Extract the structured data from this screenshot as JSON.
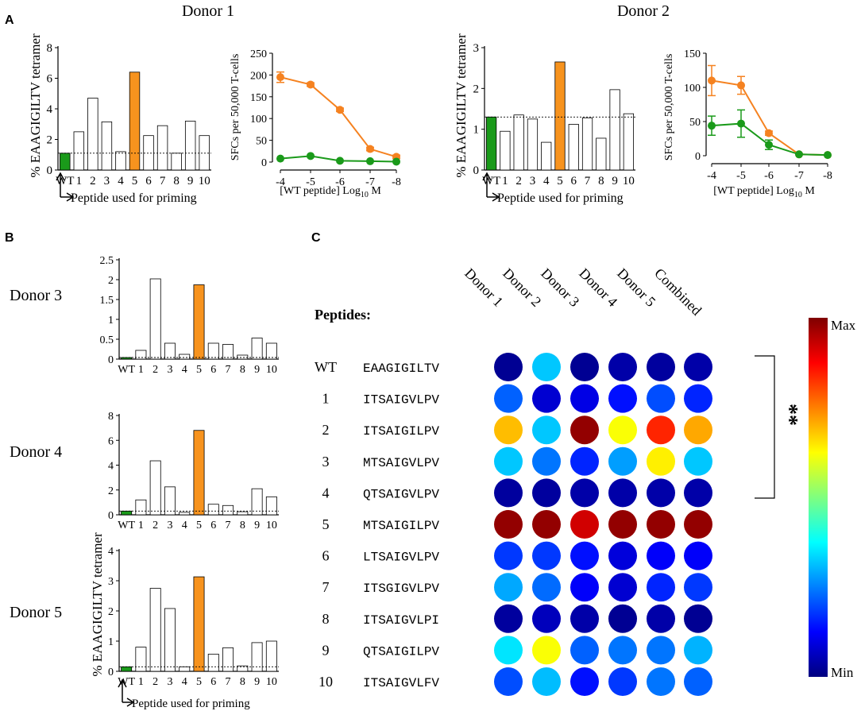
{
  "figure": {
    "panel_labels": {
      "A": "A",
      "B": "B",
      "C": "C"
    },
    "x_caption": "Peptide used for priming",
    "y_caption_bar": "% EAAGIGILTV tetramer",
    "y_caption_line": "SFCs per 50,000 T-cells",
    "x_caption_line": "[WT peptide] Log",
    "x_caption_line_sub": "10",
    "x_caption_line_unit": " M",
    "peptides_title": "Peptides:",
    "heat_max_label": "Max",
    "heat_min_label": "Min",
    "significance": "**"
  },
  "colors": {
    "wt_green": "#1a9a1a",
    "pep5_orange": "#f7931e",
    "line_orange": "#f58220",
    "line_green": "#1a9a1a"
  },
  "chart_data": [
    {
      "type": "bar",
      "panel": "A",
      "title": "Donor 1",
      "categories": [
        "WT",
        "1",
        "2",
        "3",
        "4",
        "5",
        "6",
        "7",
        "8",
        "9",
        "10"
      ],
      "values": [
        1.1,
        2.5,
        4.7,
        3.15,
        1.2,
        6.4,
        2.25,
        2.9,
        1.1,
        3.2,
        2.25
      ],
      "ylim": [
        0,
        8
      ],
      "yticks": [
        "0",
        "2",
        "4",
        "6",
        "8"
      ],
      "threshold": 1.1,
      "xlabel": "Peptide used for priming",
      "ylabel": "% EAAGIGILTV tetramer"
    },
    {
      "type": "line",
      "panel": "A",
      "x": [
        -4,
        -5,
        -6,
        -7,
        -8
      ],
      "xticks": [
        "-4",
        "-5",
        "-6",
        "-7",
        "-8"
      ],
      "ylim": [
        0,
        250
      ],
      "yticks": [
        "0",
        "50",
        "100",
        "150",
        "200",
        "250"
      ],
      "series": [
        {
          "name": "orange",
          "values": [
            195,
            178,
            120,
            30,
            12
          ],
          "errors": [
            12,
            4,
            4,
            4,
            4
          ]
        },
        {
          "name": "green",
          "values": [
            8,
            14,
            3,
            2,
            1
          ],
          "errors": [
            2,
            2,
            1,
            1,
            1
          ]
        }
      ],
      "xlabel": "[WT peptide] Log10 M",
      "ylabel": "SFCs per 50,000 T-cells"
    },
    {
      "type": "bar",
      "panel": "A",
      "title": "Donor 2",
      "categories": [
        "WT",
        "1",
        "2",
        "3",
        "4",
        "5",
        "6",
        "7",
        "8",
        "9",
        "10"
      ],
      "values": [
        1.3,
        0.95,
        1.35,
        1.25,
        0.68,
        2.65,
        1.12,
        1.28,
        0.78,
        1.97,
        1.38
      ],
      "ylim": [
        0,
        3
      ],
      "yticks": [
        "0",
        "1",
        "2",
        "3"
      ],
      "threshold": 1.3,
      "xlabel": "Peptide used for priming",
      "ylabel": "% EAAGIGILTV tetramer"
    },
    {
      "type": "line",
      "panel": "A",
      "x": [
        -4,
        -5,
        -6,
        -7,
        -8
      ],
      "xticks": [
        "-4",
        "-5",
        "-6",
        "-7",
        "-8"
      ],
      "ylim": [
        0,
        150
      ],
      "yticks": [
        "0",
        "50",
        "100",
        "150"
      ],
      "series": [
        {
          "name": "orange",
          "values": [
            110,
            103,
            33,
            2,
            1
          ],
          "errors": [
            22,
            13,
            3,
            1,
            1
          ]
        },
        {
          "name": "green",
          "values": [
            44,
            47,
            16,
            2,
            1
          ],
          "errors": [
            14,
            20,
            7,
            1,
            1
          ]
        }
      ],
      "xlabel": "[WT peptide] Log10 M",
      "ylabel": "SFCs per 50,000 T-cells"
    },
    {
      "type": "bar",
      "panel": "B",
      "title": "Donor 3",
      "categories": [
        "WT",
        "1",
        "2",
        "3",
        "4",
        "5",
        "6",
        "7",
        "8",
        "9",
        "10"
      ],
      "values": [
        0.04,
        0.22,
        2.02,
        0.4,
        0.12,
        1.87,
        0.4,
        0.37,
        0.1,
        0.53,
        0.4
      ],
      "ylim": [
        0,
        2.5
      ],
      "yticks": [
        "0",
        "0.5",
        "1",
        "1.5",
        "2",
        "2.5"
      ],
      "threshold": 0.04
    },
    {
      "type": "bar",
      "panel": "B",
      "title": "Donor 4",
      "categories": [
        "WT",
        "1",
        "2",
        "3",
        "4",
        "5",
        "6",
        "7",
        "8",
        "9",
        "10"
      ],
      "values": [
        0.3,
        1.2,
        4.35,
        2.25,
        0.2,
        6.8,
        0.85,
        0.75,
        0.25,
        2.1,
        1.45
      ],
      "ylim": [
        0,
        8
      ],
      "yticks": [
        "0",
        "2",
        "4",
        "6",
        "8"
      ],
      "threshold": 0.3
    },
    {
      "type": "bar",
      "panel": "B",
      "title": "Donor 5",
      "categories": [
        "WT",
        "1",
        "2",
        "3",
        "4",
        "5",
        "6",
        "7",
        "8",
        "9",
        "10"
      ],
      "values": [
        0.15,
        0.8,
        2.75,
        2.08,
        0.15,
        3.13,
        0.57,
        0.78,
        0.18,
        0.95,
        1.0
      ],
      "ylim": [
        0,
        4
      ],
      "yticks": [
        "0",
        "1",
        "2",
        "3",
        "4"
      ],
      "threshold": 0.15,
      "xlabel": "Peptide used for priming",
      "ylabel": "% EAAGIGILTV tetramer"
    },
    {
      "type": "heatmap",
      "panel": "C",
      "columns": [
        "Donor 1",
        "Donor 2",
        "Donor 3",
        "Donor 4",
        "Donor 5",
        "Combined"
      ],
      "rows": [
        {
          "id": "WT",
          "sequence": "EAAGIGILTV",
          "color": "green",
          "values": [
            0.02,
            0.32,
            0.02,
            0.04,
            0.03,
            0.04
          ]
        },
        {
          "id": "1",
          "sequence": "ITSAIGVLPV",
          "color": "black",
          "values": [
            0.22,
            0.08,
            0.1,
            0.14,
            0.2,
            0.16
          ]
        },
        {
          "id": "2",
          "sequence": "ITSAIGILPV",
          "color": "black",
          "values": [
            0.69,
            0.32,
            0.98,
            0.62,
            0.84,
            0.71
          ]
        },
        {
          "id": "3",
          "sequence": "MTSAIGVLPV",
          "color": "black",
          "values": [
            0.32,
            0.24,
            0.16,
            0.28,
            0.64,
            0.32
          ]
        },
        {
          "id": "4",
          "sequence": "QTSAIGVLPV",
          "color": "black",
          "values": [
            0.03,
            0.03,
            0.04,
            0.04,
            0.04,
            0.04
          ]
        },
        {
          "id": "5",
          "sequence": "MTSAIGILPV",
          "color": "orange",
          "values": [
            0.98,
            0.98,
            0.92,
            0.98,
            0.98,
            0.98
          ]
        },
        {
          "id": "6",
          "sequence": "LTSAIGVLPV",
          "color": "black",
          "values": [
            0.18,
            0.18,
            0.14,
            0.09,
            0.12,
            0.12
          ]
        },
        {
          "id": "7",
          "sequence": "ITSGIGVLPV",
          "color": "black",
          "values": [
            0.29,
            0.23,
            0.12,
            0.08,
            0.16,
            0.18
          ]
        },
        {
          "id": "8",
          "sequence": "ITSAIGVLPI",
          "color": "black",
          "values": [
            0.03,
            0.06,
            0.04,
            0.02,
            0.04,
            0.02
          ]
        },
        {
          "id": "9",
          "sequence": "QTSAIGILPV",
          "color": "black",
          "values": [
            0.35,
            0.62,
            0.22,
            0.24,
            0.24,
            0.3
          ]
        },
        {
          "id": "10",
          "sequence": "ITSAIGVLFV",
          "color": "black",
          "values": [
            0.2,
            0.31,
            0.14,
            0.18,
            0.24,
            0.22
          ]
        }
      ],
      "scale": {
        "max_label": "Max",
        "min_label": "Min",
        "colormap": "jet"
      }
    }
  ]
}
